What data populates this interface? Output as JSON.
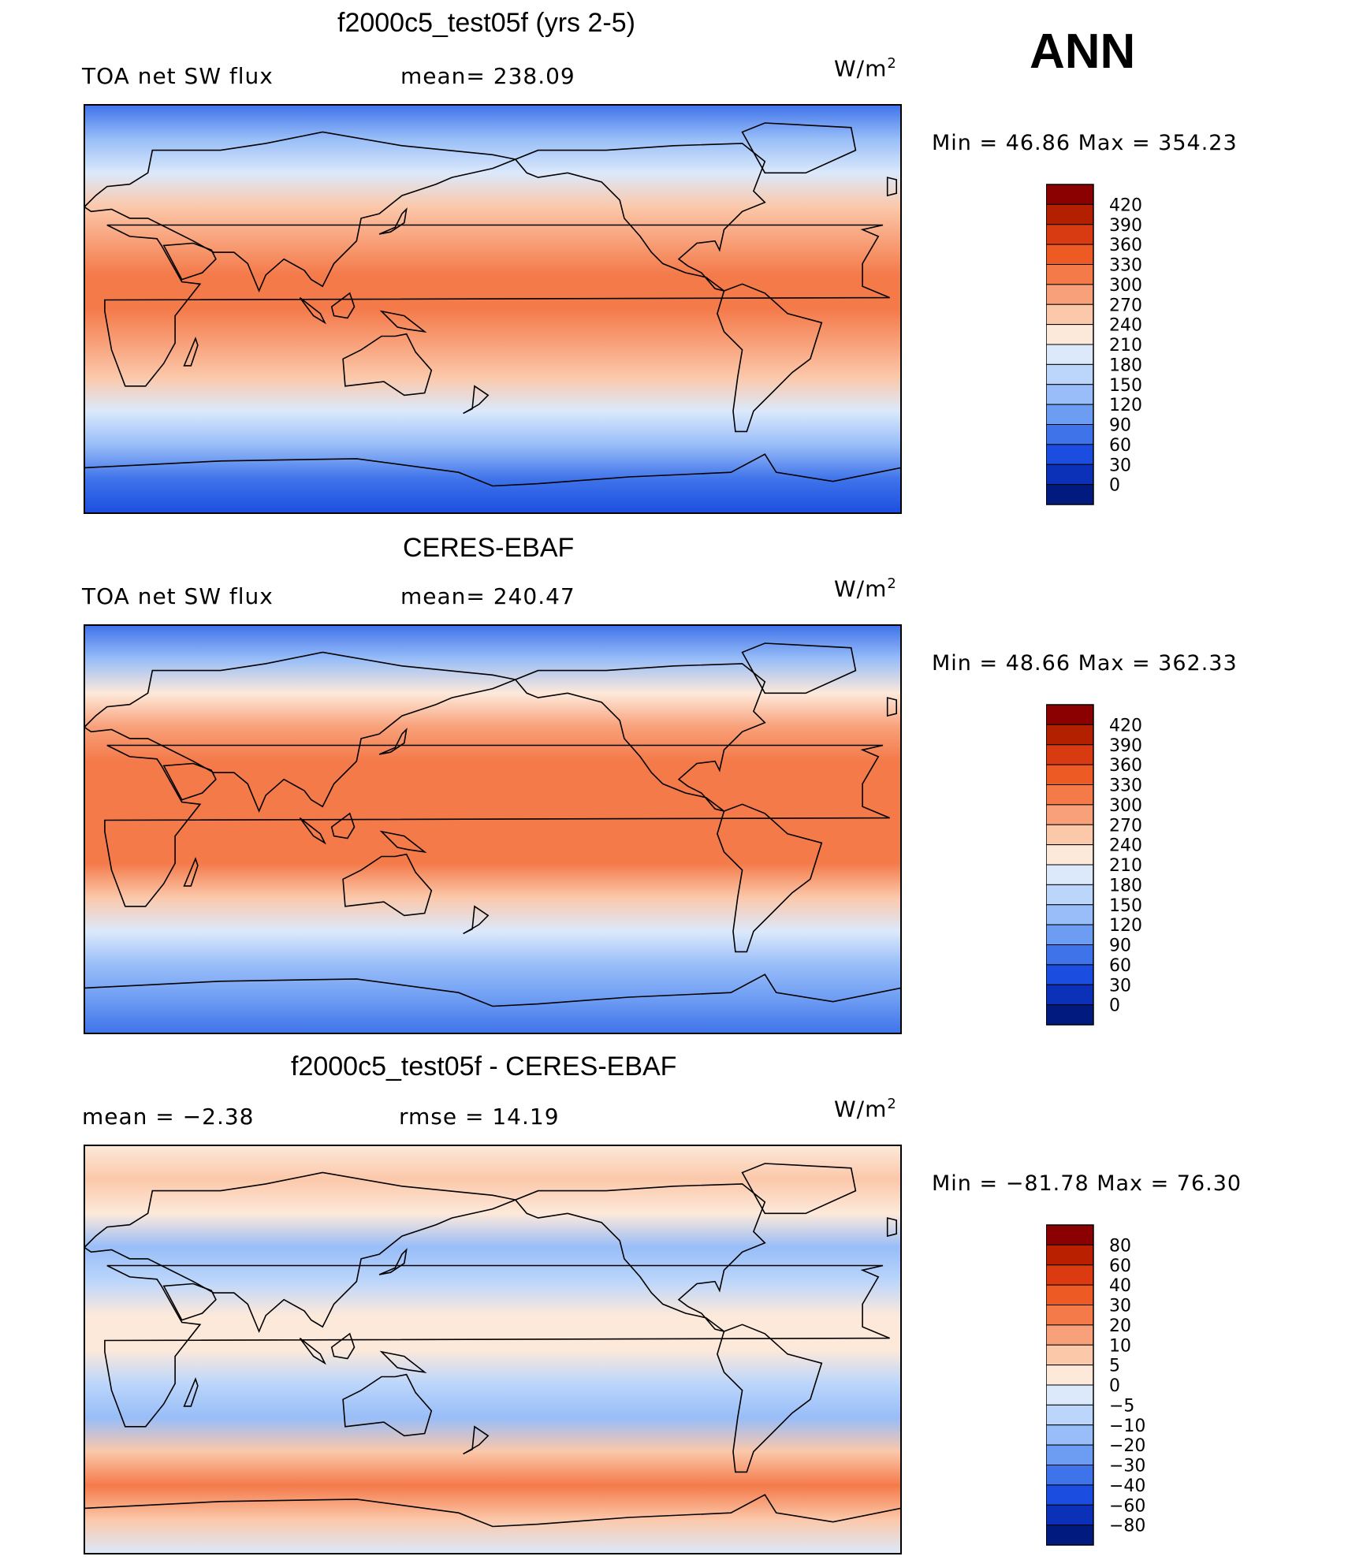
{
  "season": "ANN",
  "panels": [
    {
      "title": "f2000c5_test05f (yrs 2-5)",
      "left_label": "TOA net SW flux",
      "center_label": "mean= 238.09",
      "units_base": "W/m",
      "units_exp": "2",
      "minmax": "Min =   46.86  Max  =  354.23"
    },
    {
      "title": "CERES-EBAF",
      "left_label": "TOA net SW flux",
      "center_label": "mean= 240.47",
      "units_base": "W/m",
      "units_exp": "2",
      "minmax": "Min =   48.66  Max  =  362.33"
    },
    {
      "title": "f2000c5_test05f - CERES-EBAF",
      "left_label": "mean =   −2.38",
      "center_label": "rmse =   14.19",
      "units_base": "W/m",
      "units_exp": "2",
      "minmax": "Min  = −81.78  Max  =   76.30"
    }
  ],
  "chart_data": [
    {
      "type": "heatmap",
      "title": "f2000c5_test05f (yrs 2-5)",
      "variable": "TOA net SW flux",
      "units": "W/m2",
      "mean": 238.09,
      "min": 46.86,
      "max": 354.23,
      "colorbar_levels": [
        "420",
        "390",
        "360",
        "330",
        "300",
        "270",
        "240",
        "210",
        "180",
        "150",
        "120",
        "90",
        "60",
        "30",
        "0"
      ],
      "colorbar_colors": [
        "#8b0000",
        "#b22000",
        "#d83a12",
        "#ee5a24",
        "#f47a4a",
        "#f8a079",
        "#fbc8aa",
        "#fde9da",
        "#dbe9fb",
        "#bcd6fb",
        "#98bdf8",
        "#6d9cf3",
        "#3f73ea",
        "#1b4ee0",
        "#0a31b8",
        "#001a80"
      ],
      "zonal_profile": [
        80,
        140,
        210,
        270,
        300,
        320,
        320,
        300,
        260,
        200,
        140,
        90,
        60
      ]
    },
    {
      "type": "heatmap",
      "title": "CERES-EBAF",
      "variable": "TOA net SW flux",
      "units": "W/m2",
      "mean": 240.47,
      "min": 48.66,
      "max": 362.33,
      "colorbar_levels": [
        "420",
        "390",
        "360",
        "330",
        "300",
        "270",
        "240",
        "210",
        "180",
        "150",
        "120",
        "90",
        "60",
        "30",
        "0"
      ],
      "colorbar_colors": [
        "#8b0000",
        "#b22000",
        "#d83a12",
        "#ee5a24",
        "#f47a4a",
        "#f8a079",
        "#fbc8aa",
        "#fde9da",
        "#dbe9fb",
        "#bcd6fb",
        "#98bdf8",
        "#6d9cf3",
        "#3f73ea",
        "#1b4ee0",
        "#0a31b8",
        "#001a80"
      ],
      "zonal_profile": [
        80,
        150,
        215,
        275,
        305,
        325,
        325,
        305,
        265,
        205,
        145,
        95,
        62
      ]
    },
    {
      "type": "heatmap",
      "title": "f2000c5_test05f - CERES-EBAF",
      "units": "W/m2",
      "mean": -2.38,
      "rmse": 14.19,
      "min": -81.78,
      "max": 76.3,
      "colorbar_levels": [
        "80",
        "60",
        "40",
        "30",
        "20",
        "10",
        "5",
        "0",
        "−5",
        "−10",
        "−20",
        "−30",
        "−40",
        "−60",
        "−80"
      ],
      "colorbar_colors": [
        "#8b0000",
        "#b82000",
        "#dc3a10",
        "#ee5a24",
        "#f47a4a",
        "#f8a079",
        "#fbc8aa",
        "#fde9da",
        "#dbe9fb",
        "#bcd6fb",
        "#98bdf8",
        "#6d9cf3",
        "#3f73ea",
        "#1b4ee0",
        "#0a31b8",
        "#001a80"
      ],
      "zonal_profile": [
        5,
        8,
        2,
        -12,
        -8,
        5,
        3,
        -6,
        -10,
        10,
        25,
        8,
        -2
      ]
    }
  ]
}
